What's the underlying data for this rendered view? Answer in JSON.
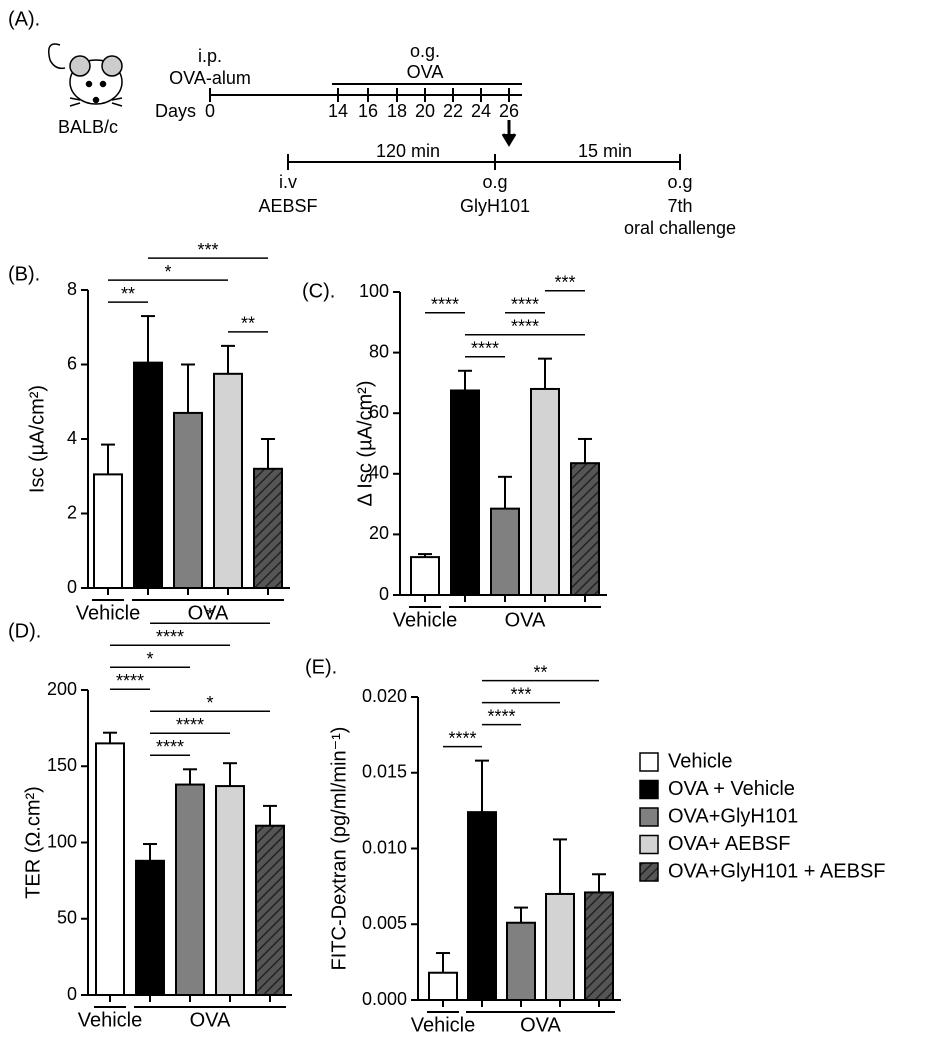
{
  "schematic": {
    "panel_label": "(A).",
    "strain": "BALB/c",
    "sensitization": {
      "route": "i.p.",
      "agent": "OVA-alum"
    },
    "days_label": "Days",
    "days": [
      "0",
      "14",
      "16",
      "18",
      "20",
      "22",
      "24",
      "26"
    ],
    "challenge": {
      "route": "o.g.",
      "agent": "OVA"
    },
    "protocol": {
      "intervals": [
        "120 min",
        "15 min"
      ],
      "steps": [
        {
          "route": "i.v",
          "agent": "AEBSF"
        },
        {
          "route": "o.g",
          "agent": "GlyH101"
        },
        {
          "route": "o.g",
          "agent": "7th",
          "note": "oral challenge"
        }
      ]
    }
  },
  "legend": {
    "series": [
      {
        "name": "Vehicle",
        "color": "#ffffff"
      },
      {
        "name": "OVA + Vehicle",
        "color": "#000000"
      },
      {
        "name": "OVA+GlyH101",
        "color": "#808080"
      },
      {
        "name": "OVA+ AEBSF",
        "color": "#d3d3d3"
      },
      {
        "name": "OVA+GlyH101 + AEBSF",
        "color": "#555555",
        "pattern": "hatch"
      }
    ]
  },
  "chart_data": [
    {
      "type": "bar",
      "panel_label": "(B).",
      "y_label": "Isc (µA/cm²)",
      "categories": [
        null,
        null,
        null,
        null,
        null
      ],
      "values": [
        3.05,
        6.05,
        4.7,
        5.75,
        3.2
      ],
      "errors": [
        0.8,
        1.25,
        1.3,
        0.75,
        0.8
      ],
      "ylim": [
        0,
        8
      ],
      "yticks": [
        0,
        2,
        4,
        6,
        8
      ],
      "groups": [
        {
          "label": "Vehicle",
          "bars": [
            0
          ]
        },
        {
          "label": "OVA",
          "bars": [
            1,
            2,
            3,
            4
          ]
        }
      ],
      "comparisons": [
        {
          "from": 0,
          "to": 1,
          "label": "**"
        },
        {
          "from": 3,
          "to": 4,
          "label": "**"
        },
        {
          "from": 0,
          "to": 3,
          "label": "*"
        },
        {
          "from": 1,
          "to": 4,
          "label": "***"
        }
      ]
    },
    {
      "type": "bar",
      "panel_label": "(C).",
      "y_label": "Δ Isc (µA/cm²)",
      "categories": [
        null,
        null,
        null,
        null,
        null
      ],
      "values": [
        12.5,
        67.5,
        28.5,
        68,
        43.5
      ],
      "errors": [
        1,
        6.5,
        10.5,
        10,
        8
      ],
      "ylim": [
        0,
        100
      ],
      "yticks": [
        0,
        20,
        40,
        60,
        80,
        100
      ],
      "groups": [
        {
          "label": "Vehicle",
          "bars": [
            0
          ]
        },
        {
          "label": "OVA",
          "bars": [
            1,
            2,
            3,
            4
          ]
        }
      ],
      "comparisons": [
        {
          "from": 1,
          "to": 2,
          "label": "****"
        },
        {
          "from": 1,
          "to": 4,
          "label": "****"
        },
        {
          "from": 2,
          "to": 3,
          "label": "****"
        },
        {
          "from": 3,
          "to": 4,
          "label": "***"
        },
        {
          "from": 0,
          "to": 1,
          "label": "****"
        }
      ]
    },
    {
      "type": "bar",
      "panel_label": "(D).",
      "y_label": "TER (Ω.cm²)",
      "categories": [
        null,
        null,
        null,
        null,
        null
      ],
      "values": [
        165,
        88,
        138,
        137,
        111
      ],
      "errors": [
        7,
        11,
        10,
        15,
        13
      ],
      "ylim": [
        0,
        200
      ],
      "yticks": [
        0,
        50,
        100,
        150,
        200
      ],
      "groups": [
        {
          "label": "Vehicle",
          "bars": [
            0
          ]
        },
        {
          "label": "OVA",
          "bars": [
            1,
            2,
            3,
            4
          ]
        }
      ],
      "comparisons": [
        {
          "from": 1,
          "to": 2,
          "label": "****"
        },
        {
          "from": 1,
          "to": 3,
          "label": "****"
        },
        {
          "from": 1,
          "to": 4,
          "label": "*"
        },
        {
          "from": 0,
          "to": 1,
          "label": "****"
        },
        {
          "from": 0,
          "to": 2,
          "label": "*"
        },
        {
          "from": 0,
          "to": 3,
          "label": "****"
        },
        {
          "from": 1,
          "to": 4,
          "label": "*"
        }
      ]
    },
    {
      "type": "bar",
      "panel_label": "(E).",
      "y_label": "FITC-Dextran (pg/ml/min⁻¹)",
      "categories": [
        null,
        null,
        null,
        null,
        null
      ],
      "values": [
        0.0018,
        0.0124,
        0.0051,
        0.007,
        0.0071
      ],
      "errors": [
        0.0013,
        0.0034,
        0.001,
        0.0036,
        0.0012
      ],
      "ylim": [
        0,
        0.02
      ],
      "yticks": [
        {
          "value": 0,
          "label": "0.000"
        },
        {
          "value": 0.005,
          "label": "0.005"
        },
        {
          "value": 0.01,
          "label": "0.010"
        },
        {
          "value": 0.015,
          "label": "0.015"
        },
        {
          "value": 0.02,
          "label": "0.020"
        }
      ],
      "groups": [
        {
          "label": "Vehicle",
          "bars": [
            0
          ]
        },
        {
          "label": "OVA",
          "bars": [
            1,
            2,
            3,
            4
          ]
        }
      ],
      "comparisons": [
        {
          "from": 0,
          "to": 1,
          "label": "****"
        },
        {
          "from": 1,
          "to": 2,
          "label": "****"
        },
        {
          "from": 1,
          "to": 3,
          "label": "***"
        },
        {
          "from": 1,
          "to": 4,
          "label": "**"
        }
      ]
    }
  ]
}
